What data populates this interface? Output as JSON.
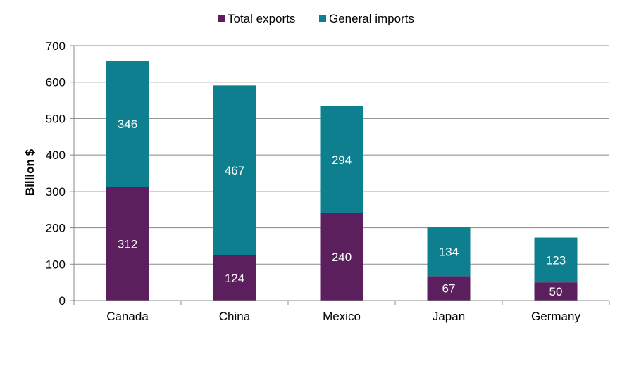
{
  "chart_data": {
    "type": "bar",
    "stacked": true,
    "title": "",
    "xlabel": "",
    "ylabel": "Billion $",
    "ylim": [
      0,
      700
    ],
    "yticks": [
      0,
      100,
      200,
      300,
      400,
      500,
      600,
      700
    ],
    "grid": true,
    "legend_position": "top-center",
    "categories": [
      "Canada",
      "China",
      "Mexico",
      "Japan",
      "Germany"
    ],
    "series": [
      {
        "name": "Total exports",
        "color": "#5b1f5e",
        "values": [
          312,
          124,
          240,
          67,
          50
        ]
      },
      {
        "name": "General imports",
        "color": "#0e7f8f",
        "values": [
          346,
          467,
          294,
          134,
          123
        ]
      }
    ]
  }
}
